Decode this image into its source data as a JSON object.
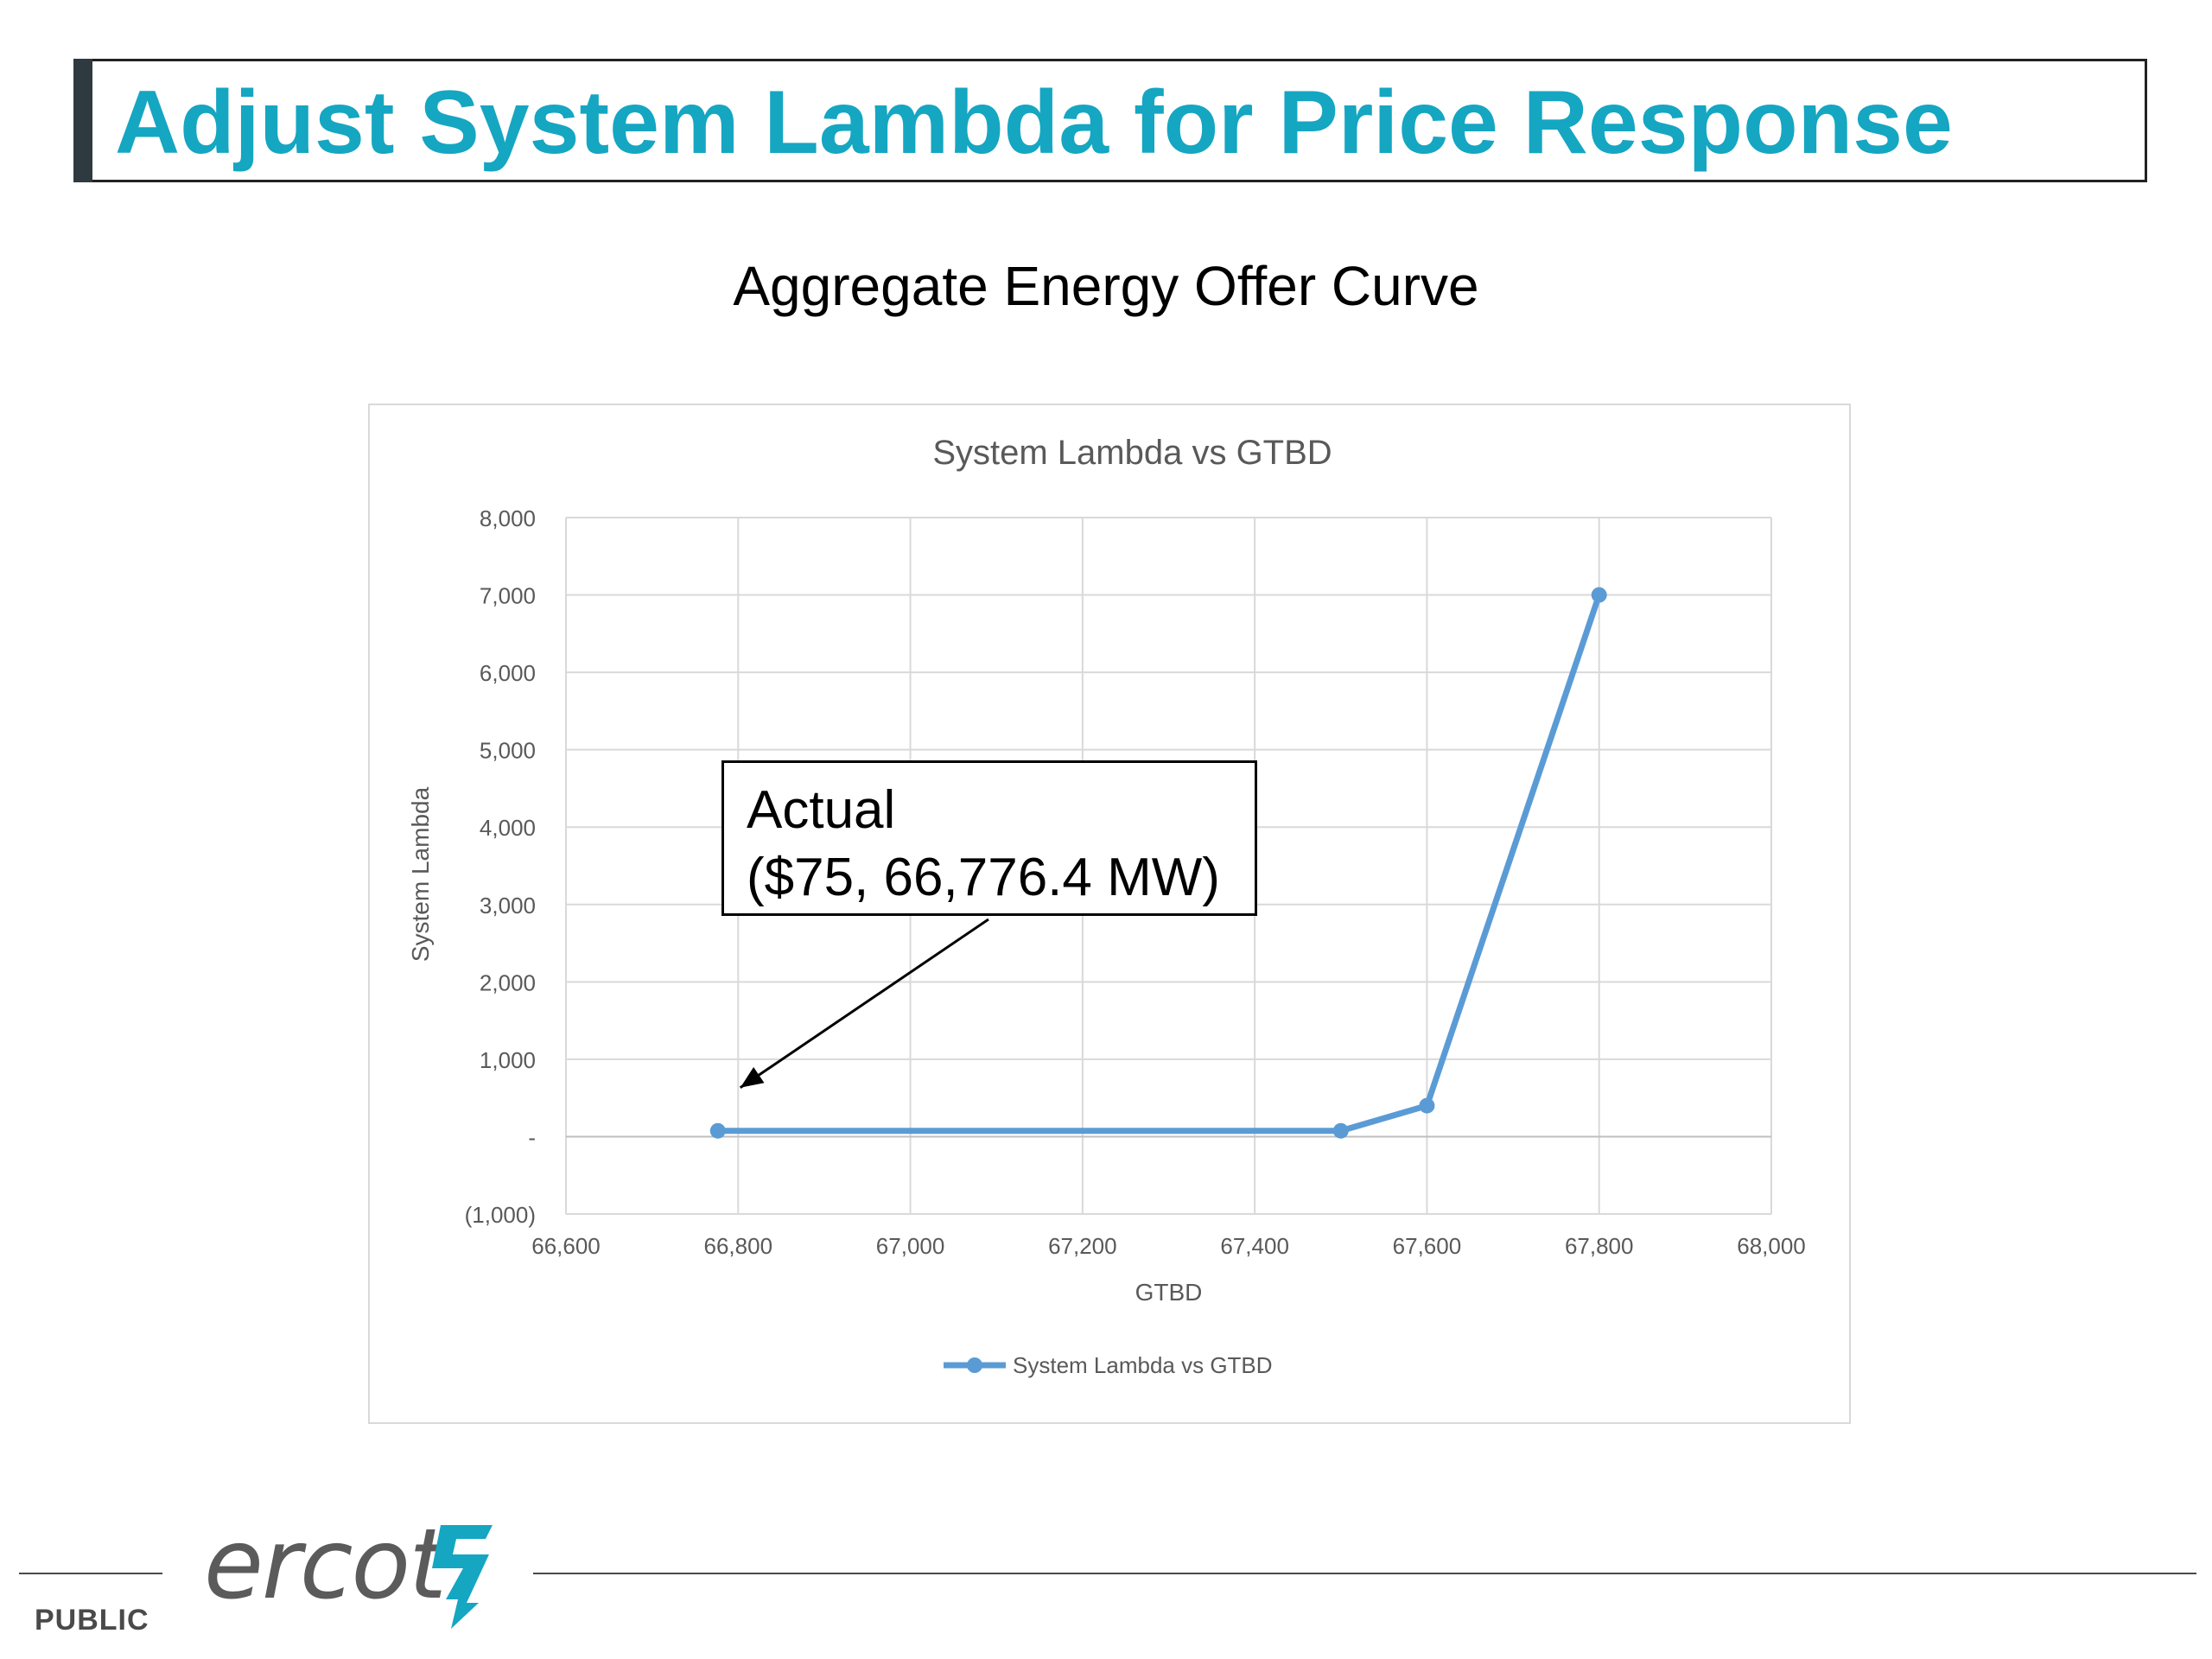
{
  "header": {
    "title": "Adjust System Lambda for Price Response"
  },
  "subtitle": "Aggregate Energy Offer Curve",
  "annotation": {
    "line1": "Actual",
    "line2": "($75, 66,776.4 MW)"
  },
  "footer": {
    "classification": "PUBLIC",
    "logo_text": "ercot"
  },
  "colors": {
    "title": "#15a6c2",
    "series": "#5b9bd5",
    "logo": "#15a6c2"
  },
  "chart_data": {
    "type": "line",
    "title": "System Lambda vs GTBD",
    "xlabel": "GTBD",
    "ylabel": "System Lambda",
    "xlim": [
      66600,
      68000
    ],
    "ylim": [
      -1000,
      8000
    ],
    "xticks": [
      66600,
      66800,
      67000,
      67200,
      67400,
      67600,
      67800,
      68000
    ],
    "xtick_labels": [
      "66,600",
      "66,800",
      "67,000",
      "67,200",
      "67,400",
      "67,600",
      "67,800",
      "68,000"
    ],
    "yticks": [
      -1000,
      0,
      1000,
      2000,
      3000,
      4000,
      5000,
      6000,
      7000,
      8000
    ],
    "ytick_labels": [
      "(1,000)",
      "-",
      "1,000",
      "2,000",
      "3,000",
      "4,000",
      "5,000",
      "6,000",
      "7,000",
      "8,000"
    ],
    "grid": true,
    "legend": "bottom",
    "series": [
      {
        "name": "System Lambda vs GTBD",
        "x": [
          66776.4,
          67500,
          67600,
          67800
        ],
        "y": [
          75,
          75,
          400,
          7000
        ]
      }
    ]
  }
}
